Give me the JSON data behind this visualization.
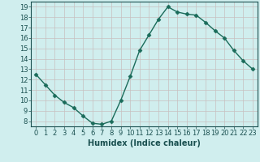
{
  "x": [
    0,
    1,
    2,
    3,
    4,
    5,
    6,
    7,
    8,
    9,
    10,
    11,
    12,
    13,
    14,
    15,
    16,
    17,
    18,
    19,
    20,
    21,
    22,
    23
  ],
  "y": [
    12.5,
    11.5,
    10.5,
    9.8,
    9.3,
    8.5,
    7.8,
    7.7,
    8.0,
    10.0,
    12.3,
    14.8,
    16.3,
    17.8,
    19.0,
    18.5,
    18.3,
    18.2,
    17.5,
    16.7,
    16.0,
    14.8,
    13.8,
    13.0
  ],
  "line_color": "#1a6b5a",
  "marker_color": "#1a6b5a",
  "bg_color": "#d0eeee",
  "grid_color": "#b8d8d8",
  "xlabel": "Humidex (Indice chaleur)",
  "ylim": [
    7.5,
    19.5
  ],
  "xlim": [
    -0.5,
    23.5
  ],
  "yticks": [
    8,
    9,
    10,
    11,
    12,
    13,
    14,
    15,
    16,
    17,
    18,
    19
  ],
  "xticks": [
    0,
    1,
    2,
    3,
    4,
    5,
    6,
    7,
    8,
    9,
    10,
    11,
    12,
    13,
    14,
    15,
    16,
    17,
    18,
    19,
    20,
    21,
    22,
    23
  ],
  "tick_label_fontsize": 6,
  "xlabel_fontsize": 7
}
